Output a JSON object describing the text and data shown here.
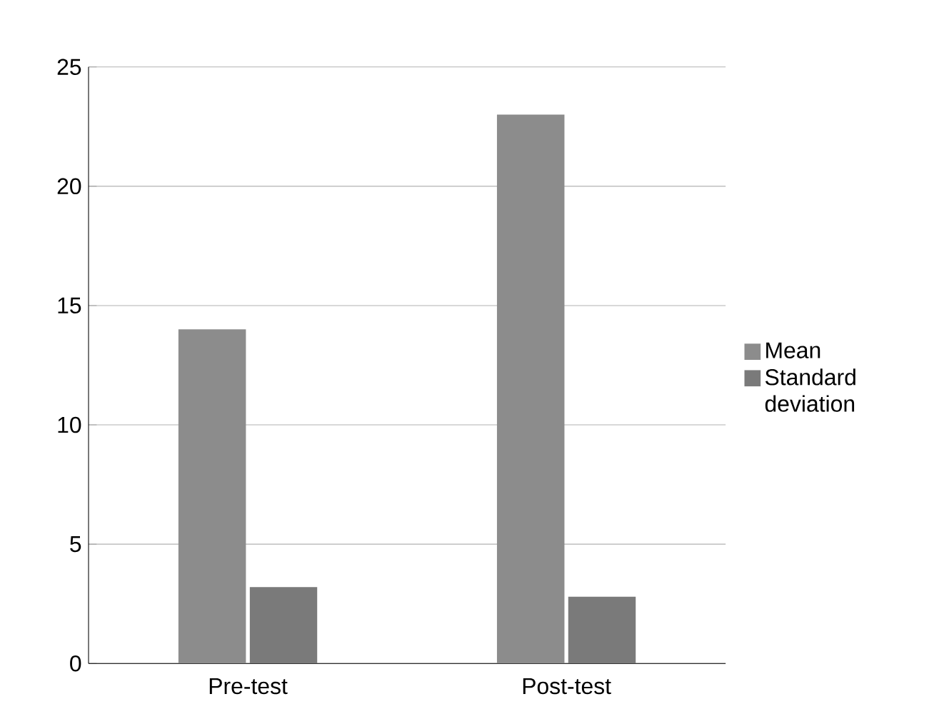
{
  "chart_data": {
    "type": "bar",
    "categories": [
      "Pre-test",
      "Post-test"
    ],
    "series": [
      {
        "name": "Mean",
        "color": "#8c8c8c",
        "values": [
          14,
          23
        ]
      },
      {
        "name": "Standard deviation",
        "color": "#7a7a7a",
        "values": [
          3.2,
          2.8
        ]
      }
    ],
    "ylim": [
      0,
      25
    ],
    "yticks": [
      0,
      5,
      10,
      15,
      20,
      25
    ],
    "grid": "y",
    "legend": "right"
  }
}
